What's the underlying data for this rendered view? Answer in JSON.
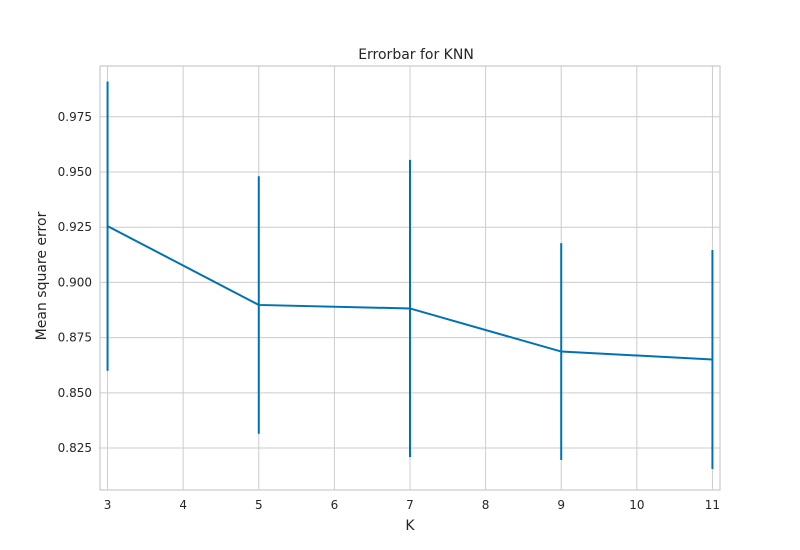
{
  "chart_data": {
    "type": "line",
    "title": "Errorbar for KNN",
    "xlabel": "K",
    "ylabel": "Mean square error",
    "x": [
      3,
      5,
      7,
      9,
      11
    ],
    "series": [
      {
        "values": [
          0.9255,
          0.8898,
          0.8882,
          0.8687,
          0.8651
        ],
        "error": [
          0.0655,
          0.0583,
          0.0673,
          0.0491,
          0.0496
        ]
      }
    ],
    "xlim": [
      2.9,
      11.1
    ],
    "ylim": [
      0.806,
      0.998
    ],
    "xticks": [
      "3",
      "4",
      "5",
      "6",
      "7",
      "8",
      "9",
      "10",
      "11"
    ],
    "yticks": [
      "0.825",
      "0.850",
      "0.875",
      "0.900",
      "0.925",
      "0.950",
      "0.975"
    ],
    "grid": true,
    "line_color": "#0072b2"
  }
}
